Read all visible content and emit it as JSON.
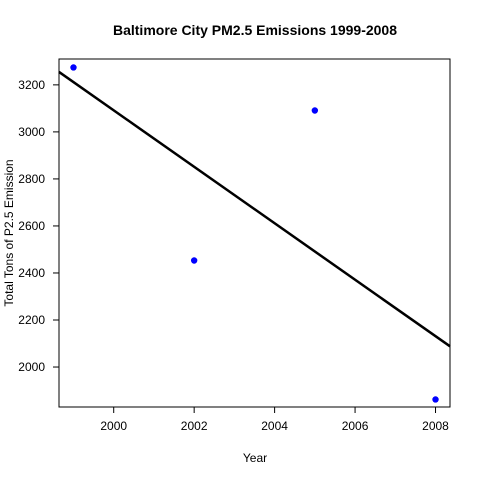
{
  "chart_data": {
    "type": "scatter",
    "title": "Baltimore City PM2.5 Emissions 1999-2008",
    "xlabel": "Year",
    "ylabel": "Total Tons of P2.5 Emission",
    "xlim": [
      1998.64,
      2008.36
    ],
    "ylim": [
      1830,
      3310
    ],
    "x_ticks": [
      2000,
      2002,
      2004,
      2006,
      2008
    ],
    "y_ticks": [
      2000,
      2200,
      2400,
      2600,
      2800,
      3000,
      3200
    ],
    "series": [
      {
        "points": [
          {
            "x": 1999,
            "y": 3274
          },
          {
            "x": 2002,
            "y": 2453
          },
          {
            "x": 2005,
            "y": 3091
          },
          {
            "x": 2008,
            "y": 1862
          }
        ],
        "color": "#0000ff"
      }
    ],
    "trend_line": {
      "intercept_at_1998_64": 3255,
      "value_at_2008_36": 2088,
      "color": "#000000"
    },
    "grid": false,
    "legend": "none"
  }
}
